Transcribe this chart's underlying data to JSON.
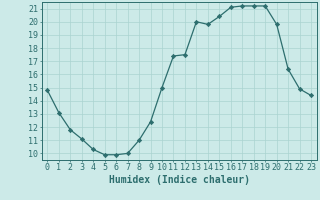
{
  "x": [
    0,
    1,
    2,
    3,
    4,
    5,
    6,
    7,
    8,
    9,
    10,
    11,
    12,
    13,
    14,
    15,
    16,
    17,
    18,
    19,
    20,
    21,
    22,
    23
  ],
  "y": [
    14.8,
    13.1,
    11.8,
    11.1,
    10.3,
    9.9,
    9.9,
    10.0,
    11.0,
    12.4,
    15.0,
    17.4,
    17.5,
    20.0,
    19.8,
    20.4,
    21.1,
    21.2,
    21.2,
    21.2,
    19.8,
    16.4,
    14.9,
    14.4
  ],
  "line_color": "#2d6e6e",
  "marker": "D",
  "marker_size": 2.2,
  "bg_color": "#cceae8",
  "grid_color": "#aad4d0",
  "xlabel": "Humidex (Indice chaleur)",
  "xlim": [
    -0.5,
    23.5
  ],
  "ylim": [
    9.5,
    21.5
  ],
  "yticks": [
    10,
    11,
    12,
    13,
    14,
    15,
    16,
    17,
    18,
    19,
    20,
    21
  ],
  "xticks": [
    0,
    1,
    2,
    3,
    4,
    5,
    6,
    7,
    8,
    9,
    10,
    11,
    12,
    13,
    14,
    15,
    16,
    17,
    18,
    19,
    20,
    21,
    22,
    23
  ],
  "tick_color": "#2d6e6e",
  "axis_color": "#2d6e6e",
  "label_fontsize": 7.0,
  "tick_fontsize": 6.0,
  "linewidth": 0.9
}
